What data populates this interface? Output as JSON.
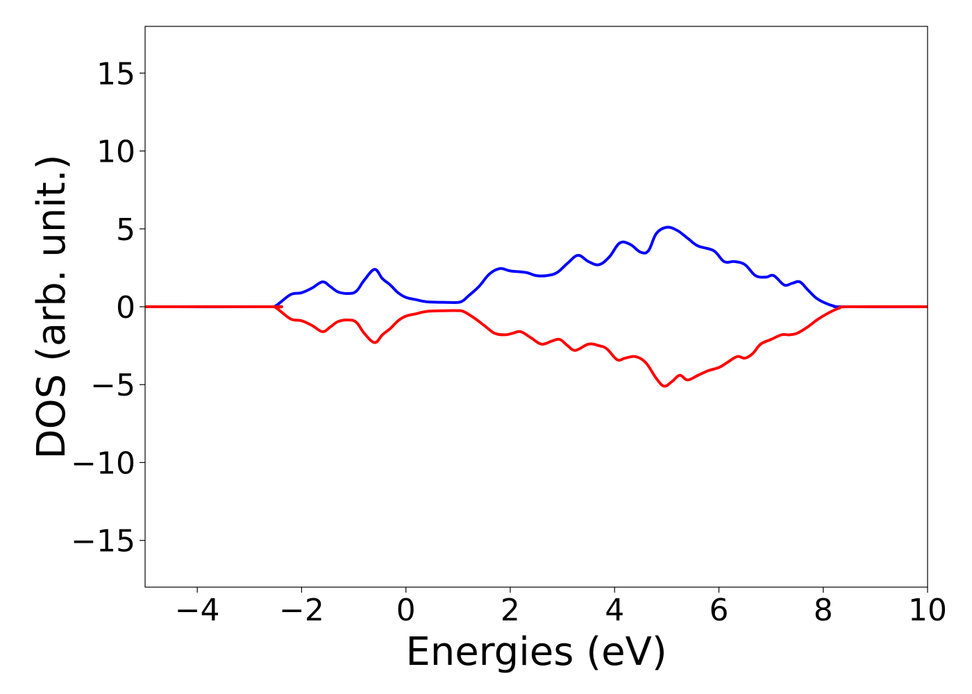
{
  "chart_data": {
    "type": "line",
    "xlabel": "Energies (eV)",
    "ylabel": "DOS (arb. unit.)",
    "xlim": [
      -5,
      10
    ],
    "ylim": [
      -18,
      18
    ],
    "xticks": [
      -4,
      -2,
      0,
      2,
      4,
      6,
      8,
      10
    ],
    "xtick_labels": [
      "−4",
      "−2",
      "0",
      "2",
      "4",
      "6",
      "8",
      "10"
    ],
    "yticks": [
      15,
      10,
      5,
      0,
      -5,
      -10,
      -15
    ],
    "ytick_labels": [
      "15",
      "10",
      "5",
      "0",
      "−5",
      "−10",
      "−15"
    ],
    "grid": false,
    "series": [
      {
        "color": "#0000ff",
        "points": [
          [
            -5,
            0
          ],
          [
            -2.6,
            0
          ],
          [
            -2.5,
            0.05
          ],
          [
            -2.4,
            0.3
          ],
          [
            -2.2,
            0.8
          ],
          [
            -2.0,
            0.9
          ],
          [
            -1.8,
            1.2
          ],
          [
            -1.6,
            1.6
          ],
          [
            -1.45,
            1.3
          ],
          [
            -1.3,
            0.95
          ],
          [
            -1.1,
            0.85
          ],
          [
            -0.95,
            1.0
          ],
          [
            -0.8,
            1.7
          ],
          [
            -0.6,
            2.4
          ],
          [
            -0.45,
            1.8
          ],
          [
            -0.3,
            1.4
          ],
          [
            -0.15,
            0.9
          ],
          [
            0,
            0.6
          ],
          [
            0.2,
            0.45
          ],
          [
            0.4,
            0.32
          ],
          [
            0.8,
            0.28
          ],
          [
            1.0,
            0.28
          ],
          [
            1.1,
            0.4
          ],
          [
            1.2,
            0.7
          ],
          [
            1.4,
            1.3
          ],
          [
            1.6,
            2.1
          ],
          [
            1.8,
            2.45
          ],
          [
            2.0,
            2.3
          ],
          [
            2.3,
            2.2
          ],
          [
            2.5,
            2.0
          ],
          [
            2.7,
            2.0
          ],
          [
            2.9,
            2.2
          ],
          [
            3.1,
            2.8
          ],
          [
            3.3,
            3.3
          ],
          [
            3.5,
            2.9
          ],
          [
            3.7,
            2.7
          ],
          [
            3.9,
            3.2
          ],
          [
            4.1,
            4.1
          ],
          [
            4.3,
            4.0
          ],
          [
            4.5,
            3.5
          ],
          [
            4.65,
            3.6
          ],
          [
            4.8,
            4.7
          ],
          [
            5.0,
            5.1
          ],
          [
            5.2,
            4.9
          ],
          [
            5.4,
            4.4
          ],
          [
            5.6,
            3.9
          ],
          [
            5.9,
            3.6
          ],
          [
            6.1,
            2.9
          ],
          [
            6.3,
            2.9
          ],
          [
            6.5,
            2.7
          ],
          [
            6.7,
            2.0
          ],
          [
            6.9,
            1.9
          ],
          [
            7.05,
            2.0
          ],
          [
            7.25,
            1.4
          ],
          [
            7.4,
            1.5
          ],
          [
            7.55,
            1.6
          ],
          [
            7.7,
            1.1
          ],
          [
            7.85,
            0.6
          ],
          [
            8.0,
            0.3
          ],
          [
            8.2,
            0.05
          ],
          [
            8.4,
            0
          ],
          [
            10,
            0
          ]
        ]
      },
      {
        "color": "#ff0000",
        "points": [
          [
            -5,
            0
          ],
          [
            -2.6,
            0
          ],
          [
            -2.5,
            -0.05
          ],
          [
            -2.4,
            -0.3
          ],
          [
            -2.2,
            -0.8
          ],
          [
            -2.0,
            -0.9
          ],
          [
            -1.8,
            -1.2
          ],
          [
            -1.6,
            -1.6
          ],
          [
            -1.45,
            -1.3
          ],
          [
            -1.3,
            -0.95
          ],
          [
            -1.1,
            -0.85
          ],
          [
            -0.95,
            -1.0
          ],
          [
            -0.8,
            -1.7
          ],
          [
            -0.6,
            -2.3
          ],
          [
            -0.45,
            -1.8
          ],
          [
            -0.3,
            -1.4
          ],
          [
            -0.15,
            -0.9
          ],
          [
            0,
            -0.6
          ],
          [
            0.2,
            -0.45
          ],
          [
            0.4,
            -0.3
          ],
          [
            0.8,
            -0.25
          ],
          [
            1.0,
            -0.25
          ],
          [
            1.1,
            -0.3
          ],
          [
            1.3,
            -0.7
          ],
          [
            1.5,
            -1.2
          ],
          [
            1.7,
            -1.7
          ],
          [
            1.9,
            -1.8
          ],
          [
            2.05,
            -1.7
          ],
          [
            2.2,
            -1.6
          ],
          [
            2.4,
            -2.0
          ],
          [
            2.6,
            -2.4
          ],
          [
            2.8,
            -2.2
          ],
          [
            2.95,
            -2.1
          ],
          [
            3.1,
            -2.5
          ],
          [
            3.25,
            -2.8
          ],
          [
            3.5,
            -2.4
          ],
          [
            3.7,
            -2.5
          ],
          [
            3.85,
            -2.7
          ],
          [
            4.05,
            -3.4
          ],
          [
            4.2,
            -3.3
          ],
          [
            4.4,
            -3.2
          ],
          [
            4.6,
            -3.6
          ],
          [
            4.8,
            -4.6
          ],
          [
            4.95,
            -5.1
          ],
          [
            5.1,
            -4.8
          ],
          [
            5.25,
            -4.4
          ],
          [
            5.4,
            -4.7
          ],
          [
            5.6,
            -4.4
          ],
          [
            5.8,
            -4.1
          ],
          [
            6.0,
            -3.9
          ],
          [
            6.15,
            -3.6
          ],
          [
            6.35,
            -3.2
          ],
          [
            6.5,
            -3.3
          ],
          [
            6.65,
            -3.0
          ],
          [
            6.8,
            -2.4
          ],
          [
            7.0,
            -2.1
          ],
          [
            7.2,
            -1.8
          ],
          [
            7.35,
            -1.8
          ],
          [
            7.5,
            -1.7
          ],
          [
            7.7,
            -1.3
          ],
          [
            7.9,
            -0.8
          ],
          [
            8.1,
            -0.4
          ],
          [
            8.3,
            -0.1
          ],
          [
            8.5,
            0
          ],
          [
            10,
            0
          ]
        ]
      }
    ]
  }
}
